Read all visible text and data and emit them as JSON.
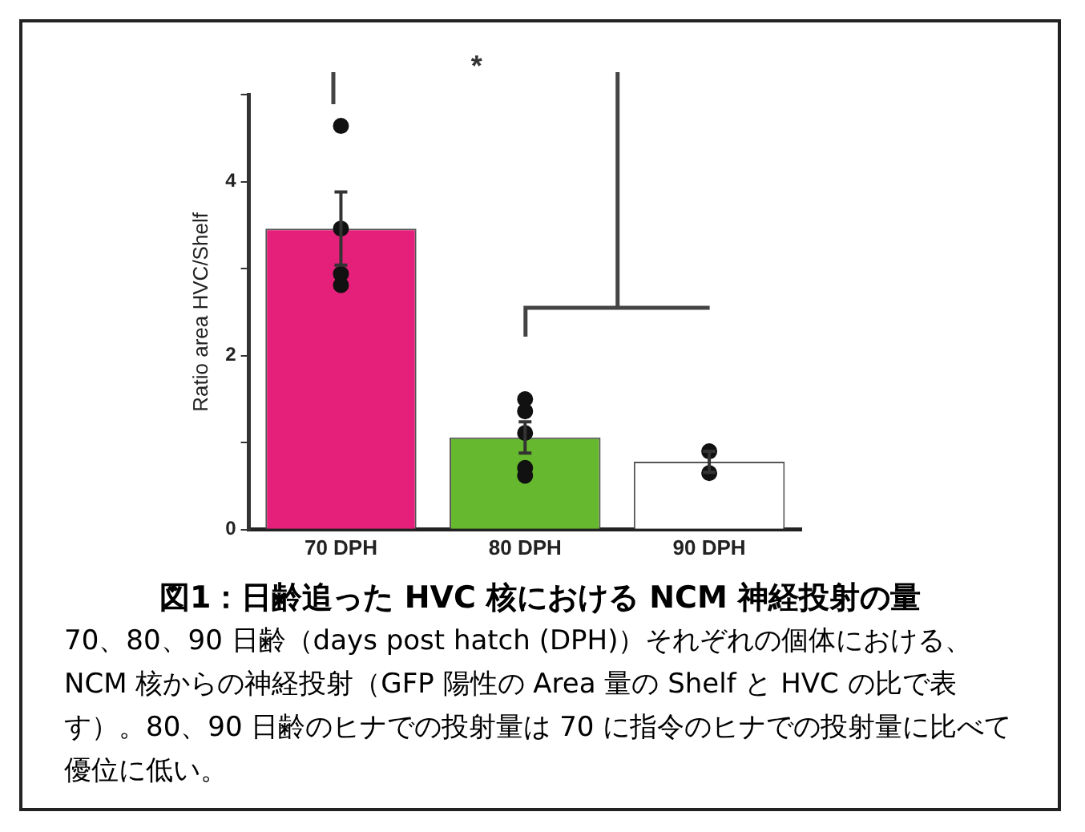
{
  "chart_data": {
    "type": "bar",
    "title": "図1：日齢追った HVC 核における NCM 神経投射の量",
    "ylabel": "Ratio area HVC/Shelf",
    "categories": [
      "70 DPH",
      "80 DPH",
      "90 DPH"
    ],
    "series": [
      {
        "values": [
          3.46,
          1.06,
          0.78
        ],
        "colors": [
          "#e5207a",
          "#66b82e",
          "#ffffff"
        ],
        "errors": [
          0.42,
          0.18,
          0.12
        ]
      },
      {
        "type": "scatter",
        "x": [
          "70 DPH",
          "70 DPH",
          "70 DPH",
          "70 DPH",
          "80 DPH",
          "80 DPH",
          "80 DPH",
          "80 DPH",
          "80 DPH",
          "90 DPH",
          "90 DPH"
        ],
        "values": [
          4.64,
          3.46,
          2.94,
          2.81,
          1.5,
          1.36,
          1.11,
          0.71,
          0.62,
          0.9,
          0.65
        ],
        "color": "#111111"
      }
    ],
    "ylim": [
      0,
      5
    ],
    "yticks": [
      0,
      {
        "value": 1,
        "label": null
      },
      2,
      {
        "value": 3,
        "label": null
      },
      4,
      {
        "value": 5,
        "label": null
      }
    ],
    "grid": false,
    "legend": false,
    "marker": "circle",
    "annotations": [
      "*",
      "70、80、90 日齢（days post hatch (DPH)）それぞれの個体における、NCM 核からの神経投射（GFP 陽性の Area 量の Shelf と HVC の比で表す）。80、90 日齢のヒナでの投射量は 70 に指令のヒナでの投射量に比べて優位に低い。"
    ]
  }
}
